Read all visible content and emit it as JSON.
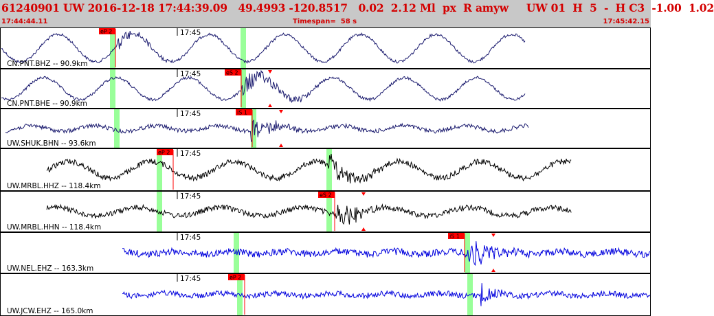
{
  "header": {
    "event_info": "61240901 UW 2016-12-18 17:44:39.09   49.4993 -120.8517   0.02  2.12 Ml  px  R amyw     UW 01  H  5  -  H C3  -1.00  1.02",
    "start_time": "17:44:44.11",
    "timespan": "Timespan=  58 s",
    "end_time": "17:45:42.15"
  },
  "colors": {
    "header_bg": "#c8c8c8",
    "header_text": "#d40000",
    "window_green": "#99ff99",
    "pick_red": "#ff0000",
    "trace_navy": "#1a1a6e",
    "trace_black": "#000000",
    "trace_blue": "#0000dd"
  },
  "time_axis": {
    "tick_label": "17:45"
  },
  "traces": [
    {
      "label": "CN.PNT.BHZ -- 90.9km",
      "color": "#1a1a6e",
      "picks": [
        {
          "type": "P",
          "text": "eP 2"
        }
      ]
    },
    {
      "label": "CN.PNT.BHE -- 90.9km",
      "color": "#1a1a6e",
      "picks": [
        {
          "type": "S",
          "text": "eS 2"
        }
      ]
    },
    {
      "label": "UW.SHUK.BHN -- 93.6km",
      "color": "#1a1a6e",
      "picks": [
        {
          "type": "S",
          "text": "iS 1"
        }
      ]
    },
    {
      "label": "UW.MRBL.HHZ -- 118.4km",
      "color": "#000000",
      "picks": [
        {
          "type": "P",
          "text": "eP 2"
        }
      ]
    },
    {
      "label": "UW.MRBL.HHN -- 118.4km",
      "color": "#000000",
      "picks": [
        {
          "type": "S",
          "text": "eS 2"
        }
      ]
    },
    {
      "label": "UW.NEL.EHZ -- 163.3km",
      "color": "#0000dd",
      "picks": [
        {
          "type": "S",
          "text": "iS 1"
        }
      ]
    },
    {
      "label": "UW.JCW.EHZ -- 165.0km",
      "color": "#0000dd",
      "picks": [
        {
          "type": "P",
          "text": "eP 2"
        }
      ]
    }
  ]
}
